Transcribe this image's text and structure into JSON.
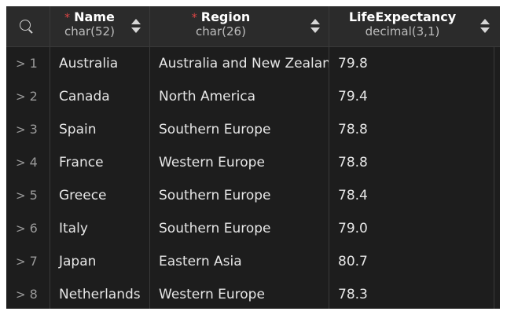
{
  "columns": [
    {
      "name": "Name",
      "type": "char(52)",
      "required": "*"
    },
    {
      "name": "Region",
      "type": "char(26)",
      "required": "*"
    },
    {
      "name": "LifeExpectancy",
      "type": "decimal(3,1)",
      "required": ""
    }
  ],
  "rows": [
    {
      "num": "1",
      "name": "Australia",
      "region": "Australia and New Zealand",
      "life": "79.8"
    },
    {
      "num": "2",
      "name": "Canada",
      "region": "North America",
      "life": "79.4"
    },
    {
      "num": "3",
      "name": "Spain",
      "region": "Southern Europe",
      "life": "78.8"
    },
    {
      "num": "4",
      "name": "France",
      "region": "Western Europe",
      "life": "78.8"
    },
    {
      "num": "5",
      "name": "Greece",
      "region": "Southern Europe",
      "life": "78.4"
    },
    {
      "num": "6",
      "name": "Italy",
      "region": "Southern Europe",
      "life": "79.0"
    },
    {
      "num": "7",
      "name": "Japan",
      "region": "Eastern Asia",
      "life": "80.7"
    },
    {
      "num": "8",
      "name": "Netherlands",
      "region": "Western Europe",
      "life": "78.3"
    }
  ],
  "icons": {
    "search": "search-icon",
    "sort": "sort-icon",
    "expand": "chevron-right-icon"
  },
  "colors": {
    "background": "#1d1d1d",
    "header": "#2b2b2b",
    "required": "#e04545"
  }
}
